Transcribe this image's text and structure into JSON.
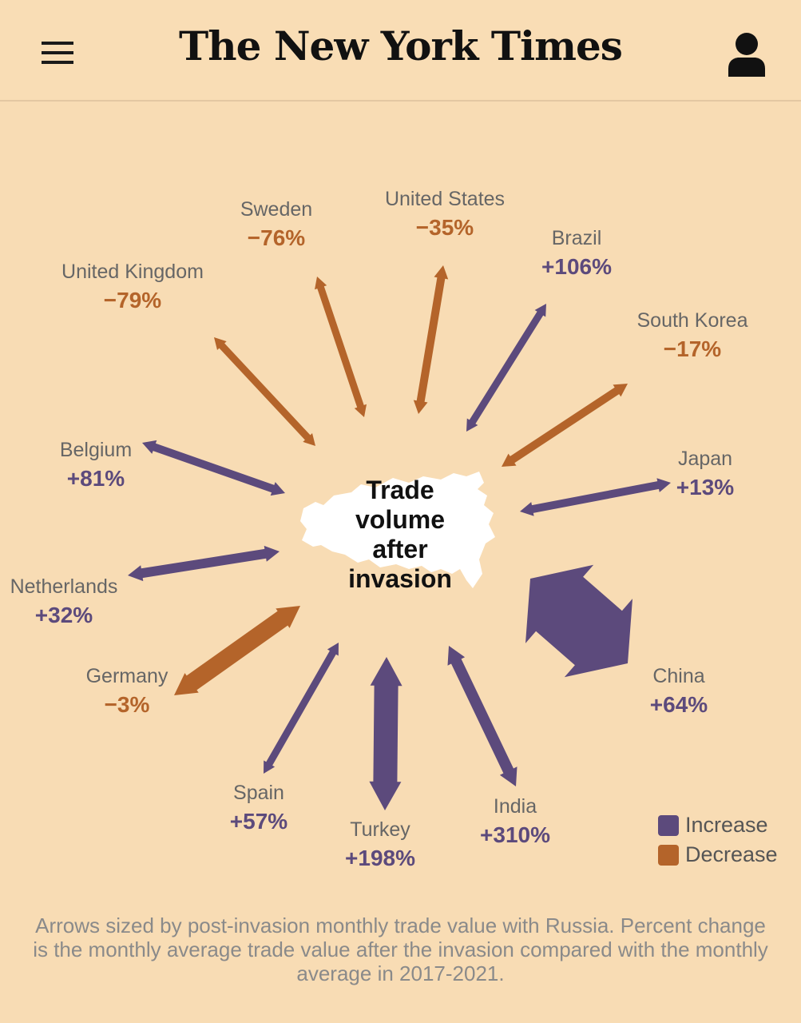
{
  "header": {
    "logo": "The New York Times"
  },
  "colors": {
    "increase": "#5c4a7c",
    "decrease": "#b4642a",
    "background": "#f8dcb4"
  },
  "chart_data": {
    "type": "diagram",
    "center_label": [
      "Trade",
      "volume",
      "after",
      "invasion"
    ],
    "countries": [
      {
        "name": "Sweden",
        "change": "−76%",
        "direction": "decrease"
      },
      {
        "name": "United States",
        "change": "−35%",
        "direction": "decrease"
      },
      {
        "name": "Brazil",
        "change": "+106%",
        "direction": "increase"
      },
      {
        "name": "United Kingdom",
        "change": "−79%",
        "direction": "decrease"
      },
      {
        "name": "South Korea",
        "change": "−17%",
        "direction": "decrease"
      },
      {
        "name": "Belgium",
        "change": "+81%",
        "direction": "increase"
      },
      {
        "name": "Japan",
        "change": "+13%",
        "direction": "increase"
      },
      {
        "name": "Netherlands",
        "change": "+32%",
        "direction": "increase"
      },
      {
        "name": "China",
        "change": "+64%",
        "direction": "increase"
      },
      {
        "name": "Germany",
        "change": "−3%",
        "direction": "decrease"
      },
      {
        "name": "Spain",
        "change": "+57%",
        "direction": "increase"
      },
      {
        "name": "India",
        "change": "+310%",
        "direction": "increase"
      },
      {
        "name": "Turkey",
        "change": "+198%",
        "direction": "increase"
      }
    ],
    "legend": [
      {
        "label": "Increase",
        "direction": "increase"
      },
      {
        "label": "Decrease",
        "direction": "decrease"
      }
    ]
  },
  "footnote": "Arrows sized by post-invasion monthly trade value with Russia. Percent change is the monthly average trade value after the invasion compared with the monthly average in 2017-2021."
}
